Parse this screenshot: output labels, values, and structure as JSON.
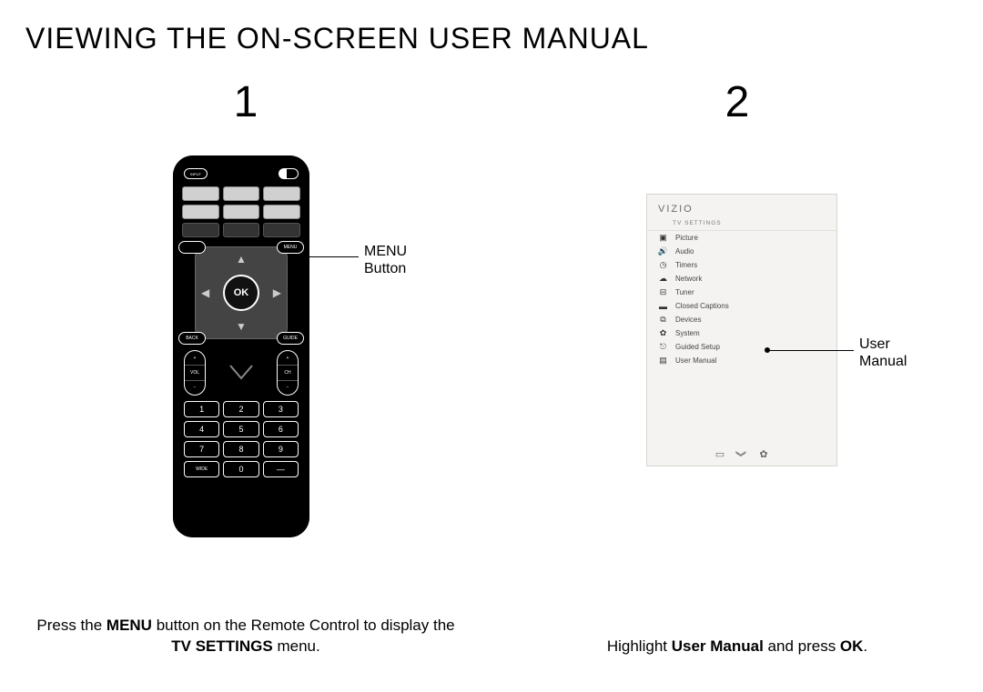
{
  "page": {
    "title": "VIEWING THE ON-SCREEN USER MANUAL"
  },
  "step1": {
    "number": "1",
    "callout_label_line1": "MENU",
    "callout_label_line2": "Button",
    "caption_pre": "Press the ",
    "caption_strong1": "MENU",
    "caption_mid": " button on the Remote Control to display the ",
    "caption_strong2": "TV SETTINGS",
    "caption_post": " menu.",
    "remote": {
      "input_label": "INPUT",
      "ok_label": "OK",
      "menu_label": "MENU",
      "back_label": "BACK",
      "guide_label": "GUIDE",
      "vol_plus": "+",
      "vol_minus": "−",
      "vol_text": "VOL",
      "ch_text": "CH",
      "keys": [
        "1",
        "2",
        "3",
        "4",
        "5",
        "6",
        "7",
        "8",
        "9",
        "WIDE",
        "0",
        "—"
      ]
    }
  },
  "step2": {
    "number": "2",
    "callout_label_line1": "User",
    "callout_label_line2": "Manual",
    "caption_pre": "Highlight ",
    "caption_strong1": "User Manual",
    "caption_mid": " and press ",
    "caption_strong2": "OK",
    "caption_post": ".",
    "panel": {
      "brand": "VIZIO",
      "subtitle": "TV SETTINGS",
      "items": [
        {
          "icon": "▣",
          "label": "Picture"
        },
        {
          "icon": "🔊",
          "label": "Audio"
        },
        {
          "icon": "◷",
          "label": "Timers"
        },
        {
          "icon": "☁",
          "label": "Network"
        },
        {
          "icon": "⊟",
          "label": "Tuner"
        },
        {
          "icon": "▬",
          "label": "Closed Captions"
        },
        {
          "icon": "⧉",
          "label": "Devices"
        },
        {
          "icon": "✿",
          "label": "System"
        },
        {
          "icon": "⎋",
          "label": "Guided Setup"
        },
        {
          "icon": "▤",
          "label": "User Manual"
        }
      ]
    }
  },
  "colors": {
    "bg": "#ffffff",
    "text": "#000000",
    "remote_body": "#000000",
    "panel_bg": "#f4f3f1",
    "panel_border": "#d7d5d1"
  }
}
